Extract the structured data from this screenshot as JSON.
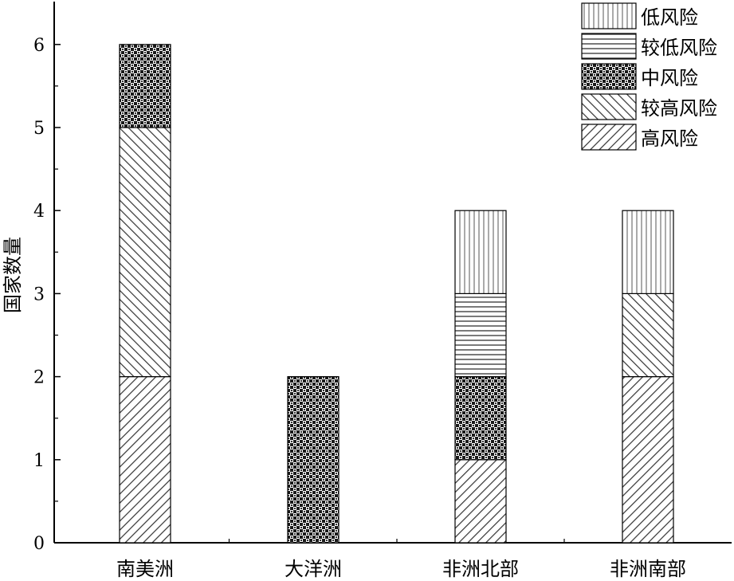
{
  "chart_data": {
    "type": "bar",
    "stacked": true,
    "categories": [
      "南美洲",
      "大洋洲",
      "非洲北部",
      "非洲南部"
    ],
    "ylabel": "国家数量",
    "xlabel": "",
    "ylim": [
      0,
      6.8
    ],
    "yticks": [
      0,
      1,
      2,
      3,
      4,
      5,
      6
    ],
    "grid": false,
    "legend_position": "top-right",
    "series": [
      {
        "name": "高风险",
        "pattern": "diag-up",
        "values": [
          2,
          0,
          1,
          2
        ]
      },
      {
        "name": "较高风险",
        "pattern": "diag-down",
        "values": [
          3,
          0,
          0,
          1
        ]
      },
      {
        "name": "中风险",
        "pattern": "checker",
        "values": [
          1,
          2,
          1,
          0
        ]
      },
      {
        "name": "较低风险",
        "pattern": "horizontal",
        "values": [
          0,
          0,
          1,
          0
        ]
      },
      {
        "name": "低风险",
        "pattern": "vertical",
        "values": [
          0,
          0,
          1,
          1
        ]
      }
    ],
    "legend_order": [
      "低风险",
      "较低风险",
      "中风险",
      "较高风险",
      "高风险"
    ],
    "colors": {
      "stroke": "#000000",
      "background": "#ffffff",
      "pattern": "#333333"
    }
  }
}
